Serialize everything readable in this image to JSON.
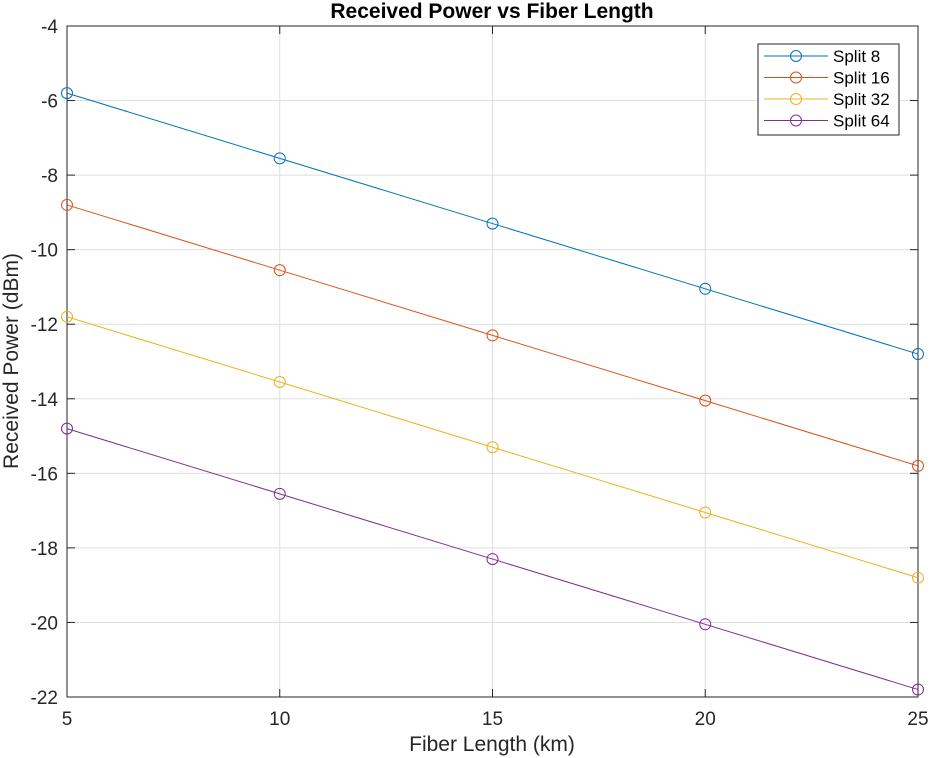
{
  "chart_data": {
    "type": "line",
    "title": "Received Power vs Fiber Length",
    "xlabel": "Fiber Length (km)",
    "ylabel": "Received Power (dBm)",
    "x": [
      5,
      10,
      15,
      20,
      25
    ],
    "xlim": [
      5,
      25
    ],
    "ylim": [
      -22,
      -4
    ],
    "xticks": [
      5,
      10,
      15,
      20,
      25
    ],
    "yticks": [
      -22,
      -20,
      -18,
      -16,
      -14,
      -12,
      -10,
      -8,
      -6,
      -4
    ],
    "grid": true,
    "legend_position": "top-right",
    "marker": "circle",
    "series": [
      {
        "name": "Split 8",
        "color": "#0072BD",
        "values": [
          -5.8,
          -7.55,
          -9.3,
          -11.05,
          -12.8
        ]
      },
      {
        "name": "Split 16",
        "color": "#D95319",
        "values": [
          -8.8,
          -10.55,
          -12.3,
          -14.05,
          -15.8
        ]
      },
      {
        "name": "Split 32",
        "color": "#EDB120",
        "values": [
          -11.8,
          -13.55,
          -15.3,
          -17.05,
          -18.8
        ]
      },
      {
        "name": "Split 64",
        "color": "#7E2F8E",
        "values": [
          -14.8,
          -16.55,
          -18.3,
          -20.05,
          -21.8
        ]
      }
    ]
  }
}
